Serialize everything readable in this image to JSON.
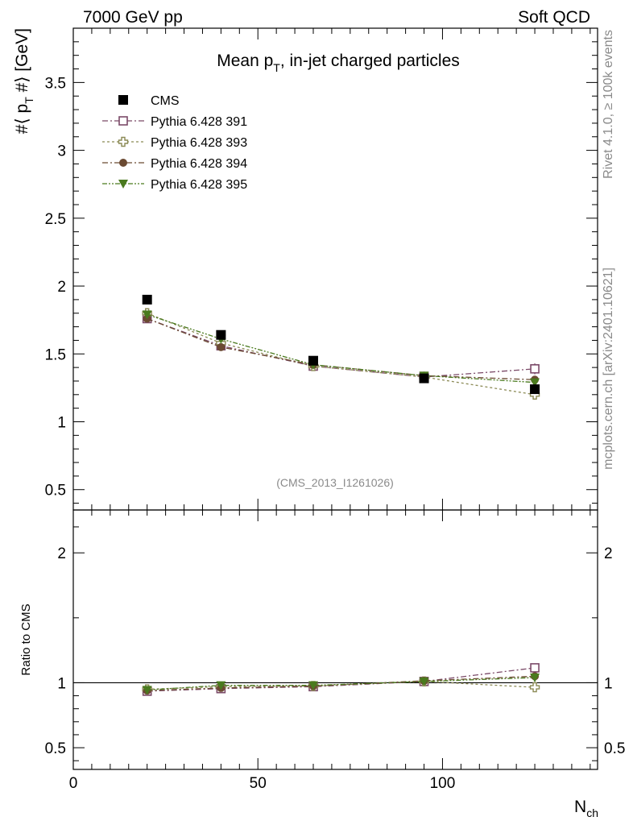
{
  "header": {
    "left": "7000 GeV pp",
    "right": "Soft QCD"
  },
  "side_labels": {
    "rivet": "Rivet 4.1.0, ≥ 100k events",
    "mcplots": "mcplots.cern.ch [arXiv:2401.10621]"
  },
  "chart_data": [
    {
      "type": "scatter",
      "panel": "main",
      "title": "Mean p_T, in-jet charged particles",
      "title_parts": {
        "main": "Mean p",
        "sub": "T",
        "rest": ", in-jet charged particles"
      },
      "ylabel": "#⟨ p_T #⟩ [GeV]",
      "ylabel_parts": {
        "pre": "#⟨ p",
        "sub": "T",
        "post": " #⟩ [GeV]"
      },
      "watermark": "(CMS_2013_I1261026)",
      "xlim": [
        0,
        142
      ],
      "ylim": [
        0.35,
        3.9
      ],
      "yticks": [
        0.5,
        1,
        1.5,
        2,
        2.5,
        3,
        3.5
      ],
      "ytick_labels": [
        "0.5",
        "1",
        "1.5",
        "2",
        "2.5",
        "3",
        "3.5"
      ],
      "x": [
        20,
        40,
        65,
        95,
        125
      ],
      "series": [
        {
          "name": "CMS",
          "marker": "square-filled",
          "color": "#000000",
          "line": "none",
          "values": [
            1.9,
            1.64,
            1.45,
            1.32,
            1.24
          ]
        },
        {
          "name": "Pythia 6.428 391",
          "marker": "square-open",
          "color": "#7b4a68",
          "line": "dashdot",
          "values": [
            1.76,
            1.56,
            1.41,
            1.33,
            1.39
          ],
          "err": [
            0,
            0,
            0,
            0,
            0.04
          ]
        },
        {
          "name": "Pythia 6.428 393",
          "marker": "cross-open",
          "color": "#8b8a55",
          "line": "dotted",
          "values": [
            1.8,
            1.58,
            1.41,
            1.33,
            1.2
          ],
          "err": [
            0,
            0,
            0,
            0,
            0.03
          ]
        },
        {
          "name": "Pythia 6.428 394",
          "marker": "circle-filled",
          "color": "#6b4a32",
          "line": "dashdot",
          "values": [
            1.76,
            1.55,
            1.42,
            1.34,
            1.31
          ]
        },
        {
          "name": "Pythia 6.428 395",
          "marker": "triangle-down-filled",
          "color": "#4a7a1e",
          "line": "dashdotdot",
          "values": [
            1.79,
            1.61,
            1.42,
            1.34,
            1.29
          ]
        }
      ]
    },
    {
      "type": "scatter",
      "panel": "ratio",
      "ylabel": "Ratio to CMS",
      "xlabel": "N_ch",
      "xlabel_parts": {
        "main": "N",
        "sub": "ch"
      },
      "xlim": [
        0,
        142
      ],
      "xticks": [
        0,
        50,
        100
      ],
      "xtick_labels": [
        "0",
        "50",
        "100"
      ],
      "ylim": [
        0.333,
        2.33
      ],
      "yticks": [
        0.5,
        1,
        2
      ],
      "ytick_labels": [
        "0.5",
        "1",
        "2"
      ],
      "reference": 1,
      "x": [
        20,
        40,
        65,
        95,
        125
      ],
      "series": [
        {
          "name": "Pythia 6.428 391",
          "values": [
            0.935,
            0.955,
            0.97,
            1.01,
            1.115
          ],
          "err": [
            0,
            0,
            0,
            0,
            0.02
          ]
        },
        {
          "name": "Pythia 6.428 393",
          "values": [
            0.95,
            0.97,
            0.975,
            1.01,
            0.965
          ],
          "err": [
            0,
            0,
            0,
            0,
            0.02
          ]
        },
        {
          "name": "Pythia 6.428 394",
          "values": [
            0.94,
            0.96,
            0.975,
            1.015,
            1.05
          ]
        },
        {
          "name": "Pythia 6.428 395",
          "values": [
            0.945,
            0.98,
            0.98,
            1.01,
            1.04
          ]
        }
      ]
    }
  ]
}
